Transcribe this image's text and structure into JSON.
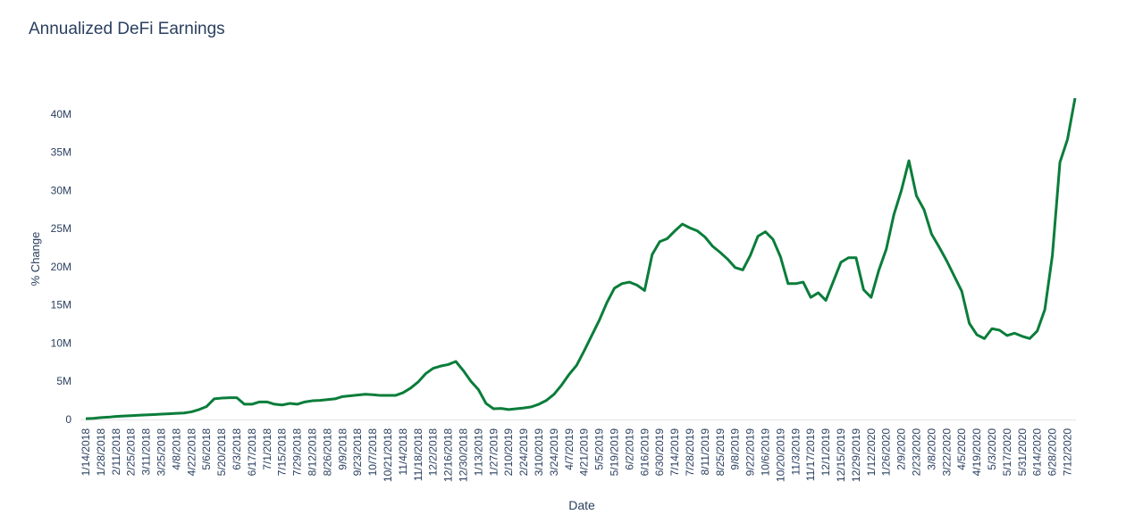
{
  "chart_data": {
    "type": "line",
    "title": "Annualized DeFi Earnings",
    "x_label": "Date",
    "y_label": "% Change",
    "categories": [
      "1/14/2018",
      null,
      "1/28/2018",
      null,
      "2/11/2018",
      null,
      "2/25/2018",
      null,
      "3/11/2018",
      null,
      "3/25/2018",
      null,
      "4/8/2018",
      null,
      "4/22/2018",
      null,
      "5/6/2018",
      null,
      "5/20/2018",
      null,
      "6/3/2018",
      null,
      "6/17/2018",
      null,
      "7/1/2018",
      null,
      "7/15/2018",
      null,
      "7/29/2018",
      null,
      "8/12/2018",
      null,
      "8/26/2018",
      null,
      "9/9/2018",
      null,
      "9/23/2018",
      null,
      "10/7/2018",
      null,
      "10/21/2018",
      null,
      "11/4/2018",
      null,
      "11/18/2018",
      null,
      "12/2/2018",
      null,
      "12/16/2018",
      null,
      "12/30/2018",
      null,
      "1/13/2019",
      null,
      "1/27/2019",
      null,
      "2/10/2019",
      null,
      "2/24/2019",
      null,
      "3/10/2019",
      null,
      "3/24/2019",
      null,
      "4/7/2019",
      null,
      "4/21/2019",
      null,
      "5/5/2019",
      null,
      "5/19/2019",
      null,
      "6/2/2019",
      null,
      "6/16/2019",
      null,
      "6/30/2019",
      null,
      "7/14/2019",
      null,
      "7/28/2019",
      null,
      "8/11/2019",
      null,
      "8/25/2019",
      null,
      "9/8/2019",
      null,
      "9/22/2019",
      null,
      "10/6/2019",
      null,
      "10/20/2019",
      null,
      "11/3/2019",
      null,
      "11/17/2019",
      null,
      "12/1/2019",
      null,
      "12/15/2019",
      null,
      "12/29/2019",
      null,
      "1/12/2020",
      null,
      "1/26/2020",
      null,
      "2/9/2020",
      null,
      "2/23/2020",
      null,
      "3/8/2020",
      null,
      "3/22/2020",
      null,
      "4/5/2020",
      null,
      "4/19/2020",
      null,
      "5/3/2020",
      null,
      "5/17/2020",
      null,
      "5/31/2020",
      null,
      "6/14/2020",
      null,
      "6/28/2020",
      null,
      "7/12/2020",
      null
    ],
    "series": [
      {
        "name": "Annualized DeFi Earnings",
        "color": "#0a7d3a",
        "values": [
          100000,
          150000,
          250000,
          300000,
          400000,
          450000,
          500000,
          550000,
          600000,
          650000,
          700000,
          750000,
          800000,
          850000,
          1000000,
          1300000,
          1700000,
          2700000,
          2800000,
          2850000,
          2850000,
          2000000,
          2000000,
          2300000,
          2300000,
          2000000,
          1900000,
          2100000,
          2000000,
          2300000,
          2450000,
          2500000,
          2600000,
          2700000,
          3000000,
          3100000,
          3200000,
          3300000,
          3250000,
          3150000,
          3150000,
          3150000,
          3500000,
          4100000,
          4900000,
          6000000,
          6700000,
          7000000,
          7200000,
          7600000,
          6400000,
          5000000,
          3900000,
          2100000,
          1400000,
          1450000,
          1300000,
          1400000,
          1500000,
          1650000,
          2000000,
          2500000,
          3300000,
          4500000,
          5900000,
          7100000,
          9000000,
          11000000,
          13000000,
          15300000,
          17200000,
          17800000,
          18000000,
          17600000,
          16900000,
          21600000,
          23300000,
          23700000,
          24700000,
          25600000,
          25100000,
          24700000,
          23900000,
          22700000,
          21900000,
          21000000,
          19900000,
          19600000,
          21500000,
          24000000,
          24600000,
          23600000,
          21300000,
          17800000,
          17800000,
          18000000,
          16000000,
          16600000,
          15600000,
          18100000,
          20600000,
          21200000,
          21200000,
          17000000,
          16000000,
          19500000,
          22300000,
          26800000,
          30000000,
          33900000,
          29300000,
          27500000,
          24300000,
          22600000,
          20800000,
          18800000,
          16800000,
          12600000,
          11100000,
          10600000,
          11900000,
          11700000,
          11000000,
          11300000,
          10900000,
          10600000,
          11600000,
          14400000,
          21500000,
          33700000,
          36700000,
          42100000
        ]
      }
    ],
    "ylim": [
      0,
      42100000
    ],
    "yticks": [
      0,
      {
        "value": 5000000,
        "label": "5M"
      },
      {
        "value": 10000000,
        "label": "10M"
      },
      {
        "value": 15000000,
        "label": "15M"
      },
      {
        "value": 20000000,
        "label": "20M"
      },
      {
        "value": 25000000,
        "label": "25M"
      },
      {
        "value": 30000000,
        "label": "30M"
      },
      {
        "value": 35000000,
        "label": "35M"
      },
      {
        "value": 40000000,
        "label": "40M"
      }
    ],
    "grid": false
  }
}
